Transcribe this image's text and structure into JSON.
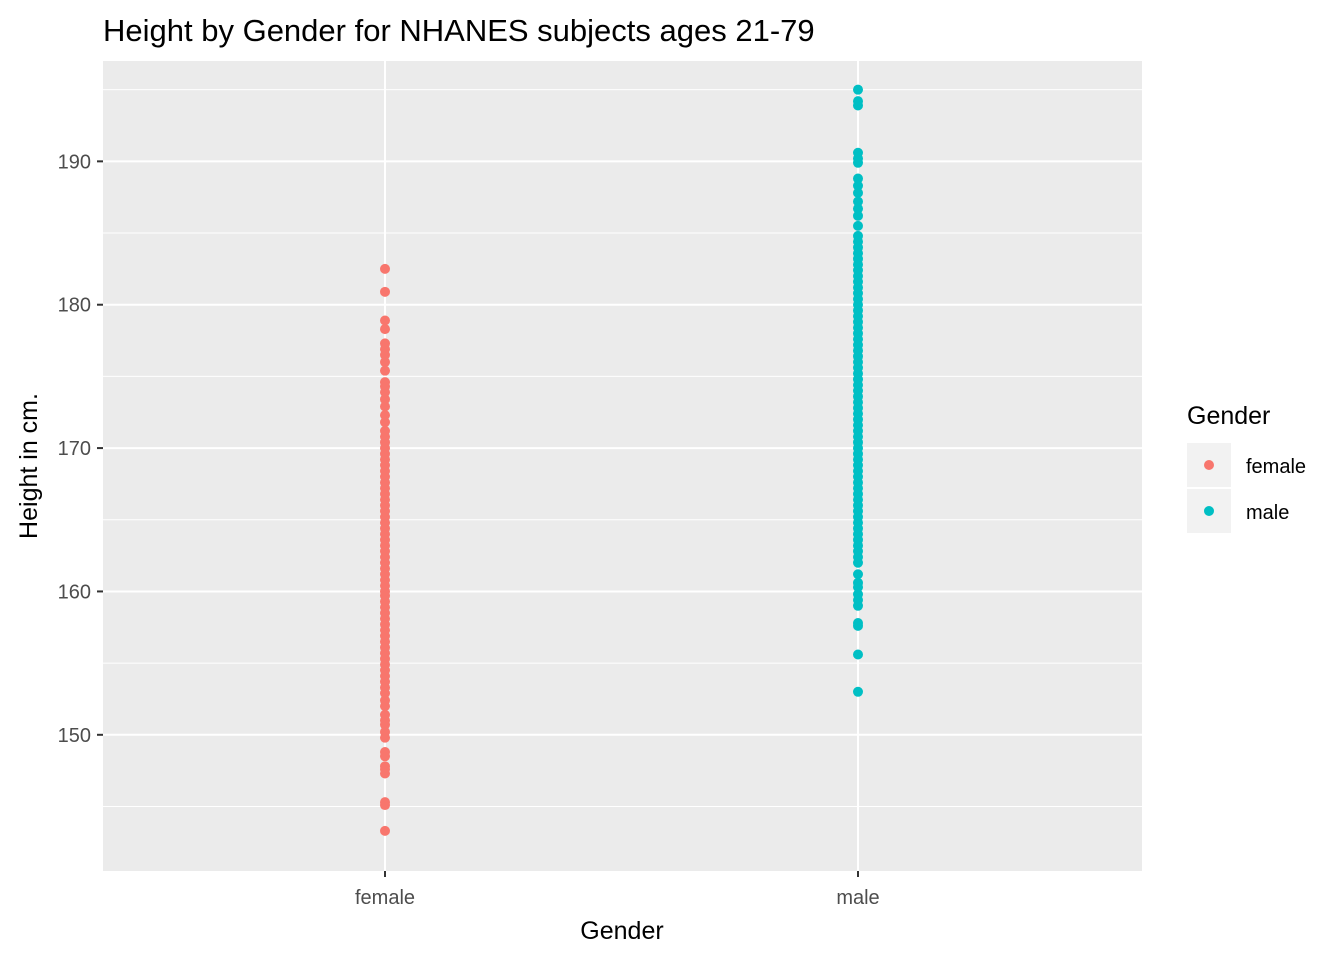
{
  "chart_data": {
    "type": "scatter",
    "title": "Height by Gender for NHANES subjects ages 21-79",
    "xlabel": "Gender",
    "ylabel": "Height in cm.",
    "categories": [
      "female",
      "male"
    ],
    "ylim": [
      140.5,
      197.0
    ],
    "yticks": [
      150,
      160,
      170,
      180,
      190
    ],
    "ytick_labels": [
      "150",
      "160",
      "170",
      "180",
      "190"
    ],
    "grid": true,
    "legend": {
      "title": "Gender",
      "position": "right"
    },
    "series": [
      {
        "name": "female",
        "color": "#F8766D",
        "values": [
          143.3,
          145.1,
          145.3,
          147.3,
          147.6,
          147.8,
          148.5,
          148.8,
          149.8,
          150.2,
          150.7,
          151.0,
          151.4,
          152.0,
          152.4,
          152.9,
          153.3,
          153.7,
          154.1,
          154.5,
          154.9,
          155.3,
          155.7,
          156.1,
          156.5,
          156.9,
          157.3,
          157.7,
          158.1,
          158.5,
          158.9,
          159.3,
          159.7,
          160.0,
          160.4,
          160.8,
          161.2,
          161.6,
          162.0,
          162.4,
          162.8,
          163.2,
          163.6,
          164.0,
          164.4,
          164.8,
          165.2,
          165.6,
          166.0,
          166.4,
          166.8,
          167.2,
          167.6,
          168.0,
          168.4,
          168.8,
          169.2,
          169.6,
          170.0,
          170.4,
          170.8,
          171.2,
          171.8,
          172.3,
          172.9,
          173.4,
          173.9,
          174.3,
          174.6,
          175.4,
          176.0,
          176.5,
          176.9,
          177.3,
          178.3,
          178.9,
          180.9,
          182.5
        ]
      },
      {
        "name": "male",
        "color": "#00BFC4",
        "values": [
          153.0,
          155.6,
          157.6,
          157.8,
          159.0,
          159.4,
          159.8,
          160.3,
          160.6,
          161.2,
          162.0,
          162.4,
          162.8,
          163.2,
          163.6,
          164.0,
          164.4,
          164.8,
          165.2,
          165.6,
          166.0,
          166.4,
          166.8,
          167.2,
          167.6,
          168.0,
          168.4,
          168.8,
          169.2,
          169.6,
          170.0,
          170.4,
          170.8,
          171.2,
          171.6,
          172.0,
          172.4,
          172.8,
          173.2,
          173.6,
          174.0,
          174.4,
          174.8,
          175.2,
          175.6,
          176.0,
          176.4,
          176.8,
          177.2,
          177.6,
          178.0,
          178.4,
          178.8,
          179.2,
          179.6,
          180.0,
          180.4,
          180.8,
          181.2,
          181.6,
          182.0,
          182.4,
          182.8,
          183.2,
          183.6,
          184.0,
          184.4,
          184.8,
          185.5,
          186.2,
          186.7,
          187.2,
          187.8,
          188.3,
          188.8,
          189.9,
          190.2,
          190.6,
          193.9,
          194.2,
          195.0
        ]
      }
    ]
  }
}
